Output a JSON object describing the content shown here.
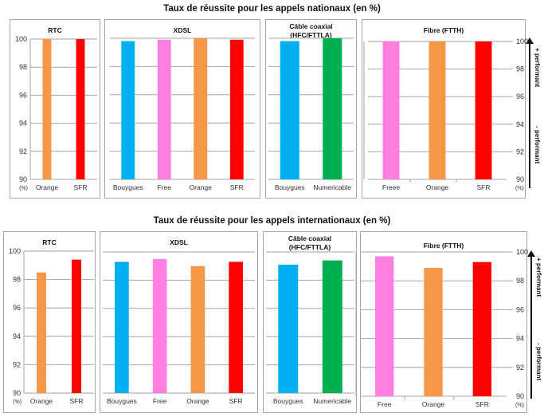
{
  "units_label": "(%)",
  "yticks": [
    90,
    92,
    94,
    96,
    98,
    100
  ],
  "legend": {
    "plus": "+ performant",
    "minus": "- performant"
  },
  "colors": {
    "Orange": "#f79646",
    "SFR": "#ff0000",
    "Bouygues": "#00b0f0",
    "Free": "#ff7fe0",
    "Freee": "#ff7fe0",
    "Numericable": "#00b050",
    "grid": "#a6a6a6"
  },
  "chart_data": [
    {
      "type": "bar",
      "title": "Taux de réussite pour les appels nationaux (en %)",
      "panel": "RTC",
      "categories": [
        "Orange",
        "SFR"
      ],
      "values": [
        100.0,
        100.0
      ],
      "ylim": [
        90,
        100
      ],
      "ylabel": "(%)"
    },
    {
      "type": "bar",
      "title": "Taux de réussite pour les appels nationaux (en %)",
      "panel": "XDSL",
      "categories": [
        "Bouygues",
        "Free",
        "Orange",
        "SFR"
      ],
      "values": [
        99.8,
        99.9,
        100.0,
        99.9
      ],
      "ylim": [
        90,
        100
      ],
      "ylabel": "(%)"
    },
    {
      "type": "bar",
      "title": "Taux de réussite pour les appels nationaux (en %)",
      "panel": "Câble coaxial (HFC/FTTLA)",
      "categories": [
        "Bouygues",
        "Numericable"
      ],
      "values": [
        99.8,
        100.0
      ],
      "ylim": [
        90,
        100
      ],
      "ylabel": "(%)"
    },
    {
      "type": "bar",
      "title": "Taux de réussite pour les appels nationaux (en %)",
      "panel": "Fibre (FTTH)",
      "categories": [
        "Freee",
        "Orange",
        "SFR"
      ],
      "values": [
        100.0,
        100.0,
        100.0
      ],
      "ylim": [
        90,
        100
      ],
      "ylabel": "(%)"
    },
    {
      "type": "bar",
      "title": "Taux de réussite pour les appels internationaux (en %)",
      "panel": "RTC",
      "categories": [
        "Orange",
        "SFR"
      ],
      "values": [
        98.5,
        99.4
      ],
      "ylim": [
        90,
        100
      ],
      "ylabel": "(%)"
    },
    {
      "type": "bar",
      "title": "Taux de réussite pour les appels internationaux (en %)",
      "panel": "XDSL",
      "categories": [
        "Bouygues",
        "Free",
        "Orange",
        "SFR"
      ],
      "values": [
        99.3,
        99.5,
        99.0,
        99.3
      ],
      "ylim": [
        90,
        100
      ],
      "ylabel": "(%)"
    },
    {
      "type": "bar",
      "title": "Taux de réussite pour les appels internationaux (en %)",
      "panel": "Câble coaxial (HFC/FTTLA)",
      "categories": [
        "Bouygues",
        "Numericable"
      ],
      "values": [
        99.1,
        99.4
      ],
      "ylim": [
        90,
        100
      ],
      "ylabel": "(%)"
    },
    {
      "type": "bar",
      "title": "Taux de réussite pour les appels internationaux (en %)",
      "panel": "Fibre (FTTH)",
      "categories": [
        "Free",
        "Orange",
        "SFR"
      ],
      "values": [
        99.7,
        98.9,
        99.3
      ],
      "ylim": [
        90,
        100
      ],
      "ylabel": "(%)"
    }
  ],
  "sections": [
    {
      "title": "Taux de réussite pour les appels nationaux (en %)",
      "panels": [
        {
          "title_line1": "RTC",
          "title_line2": ""
        },
        {
          "title_line1": "XDSL",
          "title_line2": ""
        },
        {
          "title_line1": "Câble coaxial",
          "title_line2": "(HFC/FTTLA)"
        },
        {
          "title_line1": "Fibre (FTTH)",
          "title_line2": ""
        }
      ]
    },
    {
      "title": "Taux de réussite pour les appels internationaux (en %)",
      "panels": [
        {
          "title_line1": "RTC",
          "title_line2": ""
        },
        {
          "title_line1": "XDSL",
          "title_line2": ""
        },
        {
          "title_line1": "Câble coaxial",
          "title_line2": "(HFC/FTTLA)"
        },
        {
          "title_line1": "Fibre (FTTH)",
          "title_line2": ""
        }
      ]
    }
  ]
}
